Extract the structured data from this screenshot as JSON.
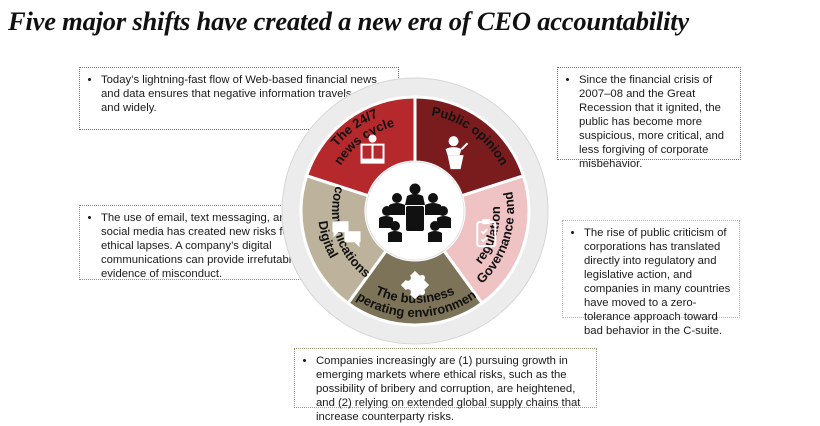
{
  "title": "Five major shifts have created a new era of CEO accountability",
  "colors": {
    "news": "#b5282c",
    "public": "#7a1b1e",
    "governance": "#efc2c4",
    "business": "#7d7359",
    "digital": "#bdb39c",
    "outer_ring": "#ececec",
    "hub": "#ffffff"
  },
  "segments": {
    "news": {
      "label": "The 24/7 news cycle",
      "icon": "book-reader-icon"
    },
    "public": {
      "label": "Public opinion",
      "icon": "speaker-at-podium-icon"
    },
    "governance": {
      "label": "Governance and regulation",
      "icon": "checklist-clipboard-icon"
    },
    "business": {
      "label": "The business operating environment",
      "icon": "puzzle-piece-icon"
    },
    "digital": {
      "label": "Digital communications",
      "icon": "speech-bubbles-icon"
    }
  },
  "hub": {
    "icon": "boardroom-meeting-icon"
  },
  "callouts": {
    "news": "Today’s lightning-fast flow of Web-based financial news and data ensures that negative information travels quickly and widely.",
    "public": "Since the financial crisis of 2007–08 and the Great Recession that it ignited, the public has become more suspicious, more critical, and less forgiving of corporate misbehavior.",
    "digital": "The use of email, text messaging, and social media has created new risks for ethical lapses. A company’s digital communications can provide irrefutable evidence of misconduct.",
    "governance": "The rise of public criticism of corporations has translated directly into regulatory and legislative action, and companies in many countries have moved to a zero-tolerance approach toward bad behavior in the C-suite.",
    "business": "Companies increasingly are (1) pursuing growth in emerging markets where ethical risks, such as the possibility of bribery and corruption, are heightened, and (2) relying on extended global supply chains that increase counterparty risks."
  }
}
